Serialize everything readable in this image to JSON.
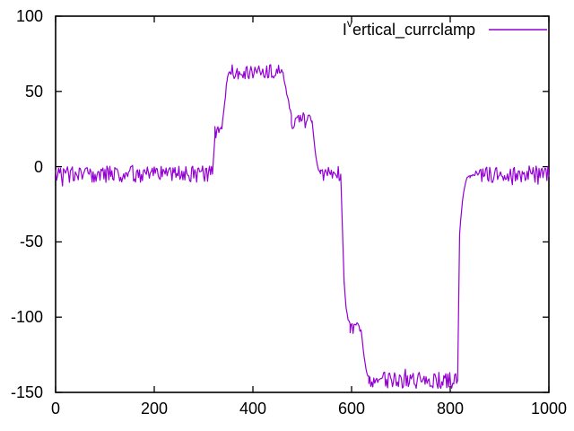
{
  "chart_data": {
    "type": "line",
    "title": "",
    "xlabel": "",
    "ylabel": "",
    "grid": false,
    "background_color": "#ffffff",
    "border_color": "#000000",
    "xlim": [
      0,
      1000
    ],
    "ylim": [
      -150,
      100
    ],
    "xticks": [
      0,
      200,
      400,
      600,
      800,
      1000
    ],
    "yticks": [
      100,
      50,
      0,
      -50,
      -100,
      -150
    ],
    "legend": {
      "position": "top-right",
      "label_plain": "I^vertical_currclamp",
      "label_base": "I",
      "label_sup": "v",
      "label_rest": "ertical_currclamp"
    },
    "series": [
      {
        "name": "I^vertical_currclamp",
        "color": "#9400d3",
        "style": "noisy-line"
      }
    ],
    "segments": [
      {
        "type": "noise",
        "x0": 0,
        "x1": 318,
        "level": -5,
        "amp": 5.5
      },
      {
        "type": "ramp",
        "x0": 318,
        "x1": 323,
        "from": -5,
        "to": 20,
        "ease": "linear",
        "k": 1,
        "amp": 0
      },
      {
        "type": "noise",
        "x0": 323,
        "x1": 337,
        "level": 23,
        "amp": 4.5
      },
      {
        "type": "ramp",
        "x0": 337,
        "x1": 348,
        "from": 25,
        "to": 59,
        "ease": "linear",
        "k": 1,
        "amp": 1.5
      },
      {
        "type": "ramp",
        "x0": 348,
        "x1": 354,
        "from": 59,
        "to": 63,
        "ease": "out",
        "k": 2,
        "amp": 0.5
      },
      {
        "type": "noise",
        "x0": 354,
        "x1": 461,
        "level": 63,
        "amp": 5
      },
      {
        "type": "ramp",
        "x0": 461,
        "x1": 478,
        "from": 63,
        "to": 33,
        "ease": "linear",
        "k": 1,
        "amp": 2
      },
      {
        "type": "noise",
        "x0": 478,
        "x1": 520,
        "level": 30,
        "amp": 5
      },
      {
        "type": "ramp",
        "x0": 520,
        "x1": 537,
        "from": 30,
        "to": -4,
        "ease": "out",
        "k": 1.8,
        "amp": 1
      },
      {
        "type": "noise",
        "x0": 537,
        "x1": 578,
        "level": -5,
        "amp": 4.5
      },
      {
        "type": "ramp",
        "x0": 578,
        "x1": 585,
        "from": -5,
        "to": -78,
        "ease": "linear",
        "k": 1,
        "amp": 0
      },
      {
        "type": "ramp",
        "x0": 585,
        "x1": 597,
        "from": -78,
        "to": -103,
        "ease": "out",
        "k": 2.2,
        "amp": 1.5
      },
      {
        "type": "noise",
        "x0": 597,
        "x1": 620,
        "level": -107,
        "amp": 4.5
      },
      {
        "type": "ramp",
        "x0": 620,
        "x1": 635,
        "from": -110,
        "to": -139,
        "ease": "out",
        "k": 1.8,
        "amp": 1
      },
      {
        "type": "noise",
        "x0": 635,
        "x1": 815,
        "level": -142,
        "amp": 5.5
      },
      {
        "type": "ramp",
        "x0": 815,
        "x1": 819,
        "from": -142,
        "to": -45,
        "ease": "linear",
        "k": 1,
        "amp": 0
      },
      {
        "type": "ramp",
        "x0": 819,
        "x1": 840,
        "from": -45,
        "to": -6,
        "ease": "out",
        "k": 2.5,
        "amp": 0.5
      },
      {
        "type": "noise",
        "x0": 840,
        "x1": 1000,
        "level": -5,
        "amp": 5.5
      }
    ]
  }
}
